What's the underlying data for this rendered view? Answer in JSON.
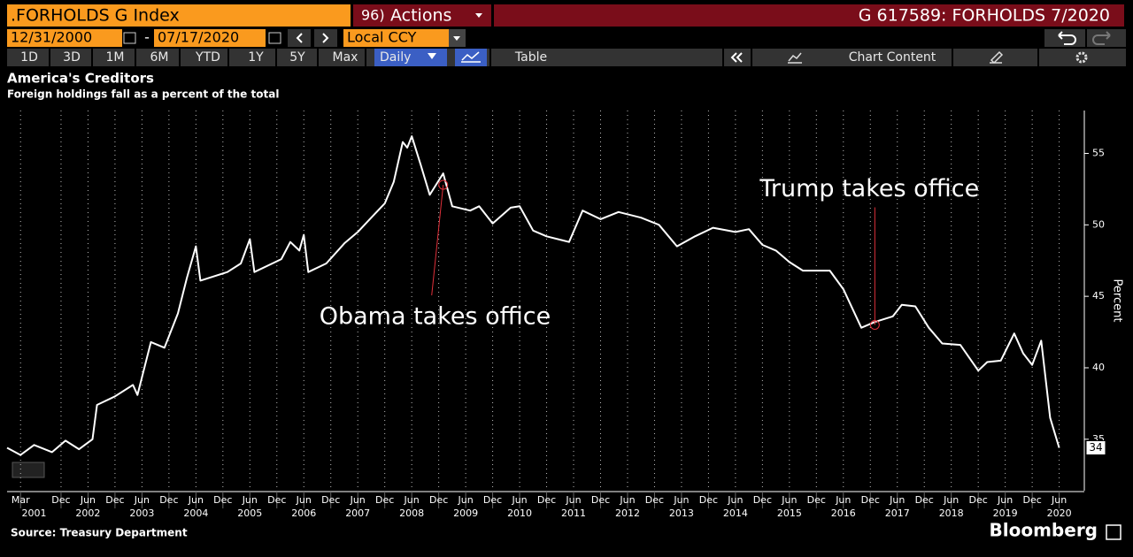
{
  "header": {
    "ticker": ".FORHOLDS G Index",
    "menu_number": "96)",
    "actions": "Actions",
    "right": "G 617589: FORHOLDS 7/2020"
  },
  "dates": {
    "start": "12/31/2000",
    "separator": "-",
    "end": "07/17/2020",
    "currency": "Local CCY"
  },
  "toolbar": {
    "ranges": [
      "1D",
      "3D",
      "1M",
      "6M",
      "YTD",
      "1Y",
      "5Y",
      "Max"
    ],
    "frequency": "Daily",
    "table": "Table",
    "chart_content": "Chart Content"
  },
  "chart_data": {
    "type": "line",
    "title": "America's Creditors",
    "subtitle": "Foreign holdings fall as a percent of the total",
    "source": "Source: Treasury Department",
    "brand": "Bloomberg",
    "y_axis_label": "Percent",
    "x": [
      "2000-12",
      "2001-03",
      "2001-06",
      "2001-10",
      "2002-01",
      "2002-04",
      "2002-07",
      "2002-08",
      "2002-12",
      "2003-04",
      "2003-05",
      "2003-08",
      "2003-11",
      "2004-02",
      "2004-04",
      "2004-06",
      "2004-07",
      "2005-01",
      "2005-04",
      "2005-06",
      "2005-07",
      "2006-01",
      "2006-03",
      "2006-05",
      "2006-06",
      "2006-07",
      "2006-11",
      "2007-03",
      "2007-06",
      "2007-09",
      "2007-12",
      "2008-02",
      "2008-04",
      "2008-05",
      "2008-06",
      "2008-08",
      "2008-10",
      "2009-01",
      "2009-03",
      "2009-07",
      "2009-09",
      "2009-12",
      "2010-04",
      "2010-06",
      "2010-09",
      "2010-12",
      "2011-05",
      "2011-08",
      "2011-12",
      "2012-04",
      "2012-09",
      "2013-01",
      "2013-05",
      "2013-09",
      "2014-01",
      "2014-06",
      "2014-09",
      "2014-12",
      "2015-03",
      "2015-06",
      "2015-09",
      "2016-03",
      "2016-06",
      "2016-10",
      "2017-01",
      "2017-05",
      "2017-07",
      "2017-10",
      "2018-01",
      "2018-04",
      "2018-08",
      "2018-12",
      "2019-02",
      "2019-05",
      "2019-08",
      "2019-10",
      "2019-12",
      "2020-02",
      "2020-04",
      "2020-06"
    ],
    "series": [
      {
        "name": "FORHOLDS",
        "color": "#ffffff",
        "values": [
          34.4,
          33.9,
          34.6,
          34.1,
          34.9,
          34.3,
          35.0,
          37.4,
          38.0,
          38.8,
          38.1,
          41.8,
          41.4,
          43.8,
          46.3,
          48.5,
          46.1,
          46.7,
          47.3,
          49.0,
          46.7,
          47.6,
          48.8,
          48.2,
          49.3,
          46.7,
          47.3,
          48.7,
          49.5,
          50.5,
          51.5,
          53.0,
          55.8,
          55.4,
          56.2,
          54.2,
          52.1,
          53.6,
          51.3,
          51.0,
          51.3,
          50.1,
          51.2,
          51.3,
          49.6,
          49.2,
          48.8,
          51.0,
          50.4,
          50.9,
          50.5,
          50.0,
          48.5,
          49.2,
          49.8,
          49.5,
          49.7,
          48.6,
          48.2,
          47.4,
          46.8,
          46.8,
          45.5,
          42.8,
          43.2,
          43.6,
          44.4,
          44.3,
          42.8,
          41.7,
          41.6,
          39.8,
          40.4,
          40.5,
          42.4,
          41.0,
          40.2,
          41.9,
          36.5,
          34.4
        ],
        "end_label": "34"
      }
    ],
    "annotations": [
      {
        "text": "Obama takes office",
        "x": "2009-01",
        "y": 52.8
      },
      {
        "text": "Trump takes office",
        "x": "2017-01",
        "y": 43.0
      }
    ],
    "annotation_color": "#e0303a",
    "xlim": [
      "2000-12",
      "2020-11"
    ],
    "xticks": [
      {
        "value": "2001-03",
        "label": "Mar"
      },
      {
        "value": "2001-12",
        "label": "Dec"
      },
      {
        "value": "2002-06",
        "label": "Jun"
      },
      {
        "value": "2002-12",
        "label": "Dec"
      },
      {
        "value": "2003-06",
        "label": "Jun"
      },
      {
        "value": "2003-12",
        "label": "Dec"
      },
      {
        "value": "2004-06",
        "label": "Jun"
      },
      {
        "value": "2004-12",
        "label": "Dec"
      },
      {
        "value": "2005-06",
        "label": "Jun"
      },
      {
        "value": "2005-12",
        "label": "Dec"
      },
      {
        "value": "2006-06",
        "label": "Jun"
      },
      {
        "value": "2006-12",
        "label": "Dec"
      },
      {
        "value": "2007-06",
        "label": "Jun"
      },
      {
        "value": "2007-12",
        "label": "Dec"
      },
      {
        "value": "2008-06",
        "label": "Jun"
      },
      {
        "value": "2008-12",
        "label": "Dec"
      },
      {
        "value": "2009-06",
        "label": "Jun"
      },
      {
        "value": "2009-12",
        "label": "Dec"
      },
      {
        "value": "2010-06",
        "label": "Jun"
      },
      {
        "value": "2010-12",
        "label": "Dec"
      },
      {
        "value": "2011-06",
        "label": "Jun"
      },
      {
        "value": "2011-12",
        "label": "Dec"
      },
      {
        "value": "2012-06",
        "label": "Jun"
      },
      {
        "value": "2012-12",
        "label": "Dec"
      },
      {
        "value": "2013-06",
        "label": "Jun"
      },
      {
        "value": "2013-12",
        "label": "Dec"
      },
      {
        "value": "2014-06",
        "label": "Jun"
      },
      {
        "value": "2014-12",
        "label": "Dec"
      },
      {
        "value": "2015-06",
        "label": "Jun"
      },
      {
        "value": "2015-12",
        "label": "Dec"
      },
      {
        "value": "2016-06",
        "label": "Jun"
      },
      {
        "value": "2016-12",
        "label": "Dec"
      },
      {
        "value": "2017-06",
        "label": "Jun"
      },
      {
        "value": "2017-12",
        "label": "Dec"
      },
      {
        "value": "2018-06",
        "label": "Jun"
      },
      {
        "value": "2018-12",
        "label": "Dec"
      },
      {
        "value": "2019-06",
        "label": "Jun"
      },
      {
        "value": "2019-12",
        "label": "Dec"
      },
      {
        "value": "2020-06",
        "label": "Jun"
      }
    ],
    "x_years": [
      2001,
      2002,
      2003,
      2004,
      2005,
      2006,
      2007,
      2008,
      2009,
      2010,
      2011,
      2012,
      2013,
      2014,
      2015,
      2016,
      2017,
      2018,
      2019,
      2020
    ],
    "ylim": [
      31.4,
      58.0
    ],
    "yticks": [
      35,
      40,
      45,
      50,
      55
    ],
    "grid": true
  }
}
